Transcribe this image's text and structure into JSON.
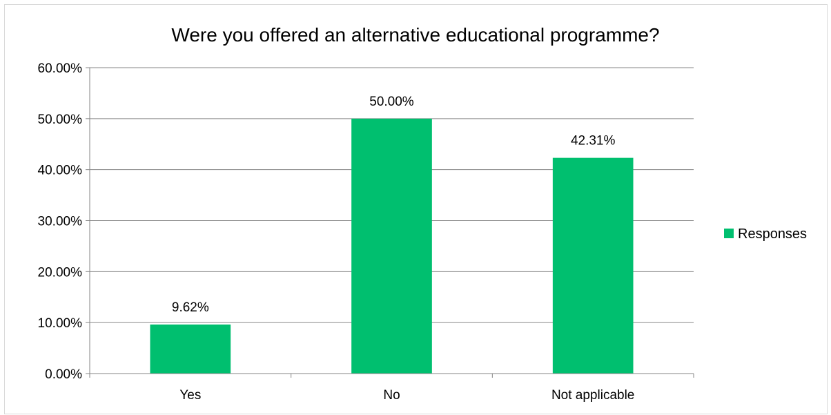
{
  "colors": {
    "bar": "#00BF6F",
    "grid": "#868686",
    "text": "#000000",
    "border": "#d9d9d9"
  },
  "chart_data": {
    "type": "bar",
    "title": "Were you offered an alternative educational programme?",
    "categories": [
      "Yes",
      "No",
      "Not applicable"
    ],
    "series": [
      {
        "name": "Responses",
        "values": [
          9.62,
          50.0,
          42.31
        ],
        "labels": [
          "9.62%",
          "50.00%",
          "42.31%"
        ]
      }
    ],
    "ylim": [
      0,
      60
    ],
    "yticks": [
      0,
      10,
      20,
      30,
      40,
      50,
      60
    ],
    "ytick_labels": [
      "0.00%",
      "10.00%",
      "20.00%",
      "30.00%",
      "40.00%",
      "50.00%",
      "60.00%"
    ],
    "grid": true,
    "legend": "right"
  }
}
